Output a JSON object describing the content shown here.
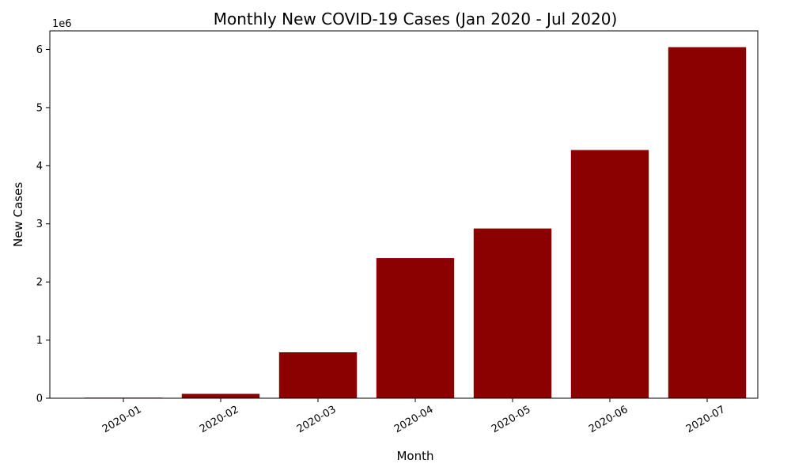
{
  "chart_data": {
    "type": "bar",
    "title": "Monthly New COVID-19 Cases (Jan 2020 - Jul 2020)",
    "xlabel": "Month",
    "ylabel": "New Cases",
    "y_offset_label": "1e6",
    "categories": [
      "2020-01",
      "2020-02",
      "2020-03",
      "2020-04",
      "2020-05",
      "2020-06",
      "2020-07"
    ],
    "values": [
      9800,
      75000,
      790000,
      2410000,
      2920000,
      4270000,
      6040000
    ],
    "ylim": [
      0,
      6320000
    ],
    "y_ticks": [
      0,
      1000000,
      2000000,
      3000000,
      4000000,
      5000000,
      6000000
    ],
    "y_tick_labels": [
      "0",
      "1",
      "2",
      "3",
      "4",
      "5",
      "6"
    ],
    "bar_color": "#8b0000",
    "grid": false,
    "legend": "none"
  }
}
